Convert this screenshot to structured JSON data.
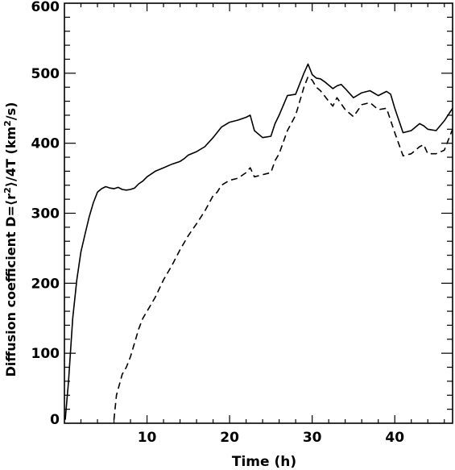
{
  "chart_data": {
    "type": "line",
    "title": "",
    "xlabel": "Time (h)",
    "ylabel_parts": {
      "prefix": "Diffusion coefficient D=",
      "lang": "⟨",
      "r": "r",
      "sup": "2",
      "rang": "⟩",
      "mid": "/4T  (km",
      "sup2": "2",
      "suffix": "/s)"
    },
    "xlim": [
      0,
      47
    ],
    "ylim": [
      0,
      600
    ],
    "x_ticks": [
      10,
      20,
      30,
      40
    ],
    "x_tick_labels": [
      "10",
      "20",
      "30",
      "40"
    ],
    "y_ticks": [
      0,
      100,
      200,
      300,
      400,
      500,
      600
    ],
    "y_tick_labels": [
      "0",
      "100",
      "200",
      "300",
      "400",
      "500",
      "600"
    ],
    "grid": false,
    "legend": "none",
    "series": [
      {
        "style": "solid",
        "color": "#000000",
        "x": [
          0.1,
          0.5,
          1,
          1.5,
          2,
          2.5,
          3,
          3.5,
          4,
          4.5,
          5,
          5.5,
          6,
          6.5,
          7,
          7.5,
          8,
          8.5,
          9,
          9.5,
          10,
          11,
          12,
          13,
          14,
          14.5,
          15,
          16,
          17,
          18,
          19,
          20,
          21,
          22,
          22.5,
          23,
          24,
          25,
          25.5,
          26,
          27,
          28,
          29,
          29.5,
          30,
          30.5,
          31,
          31.5,
          32,
          32.5,
          33,
          33.5,
          34,
          35,
          36,
          37,
          38,
          38.5,
          39,
          39.5,
          40,
          41,
          42,
          43,
          43.5,
          44,
          45,
          46,
          47
        ],
        "values": [
          5,
          60,
          150,
          205,
          245,
          270,
          295,
          315,
          330,
          335,
          338,
          336,
          335,
          337,
          334,
          333,
          334,
          336,
          342,
          346,
          352,
          360,
          365,
          370,
          374,
          378,
          383,
          388,
          395,
          408,
          423,
          430,
          433,
          437,
          440,
          418,
          408,
          410,
          428,
          440,
          468,
          470,
          500,
          513,
          498,
          493,
          492,
          488,
          483,
          478,
          482,
          484,
          478,
          465,
          472,
          475,
          468,
          471,
          474,
          470,
          450,
          415,
          418,
          428,
          425,
          420,
          418,
          432,
          450
        ]
      },
      {
        "style": "dashed",
        "color": "#000000",
        "x": [
          6,
          6.3,
          7,
          7.5,
          8,
          8.5,
          9,
          9.5,
          10,
          11,
          12,
          13,
          14,
          15,
          16,
          17,
          18,
          18.5,
          19,
          20,
          21,
          22,
          22.5,
          23,
          24,
          25,
          25.5,
          26,
          27,
          28,
          29,
          29.5,
          30,
          30.5,
          31,
          32,
          32.5,
          33,
          34,
          35,
          36,
          37,
          38,
          39,
          40,
          41,
          42,
          43,
          43.5,
          44,
          45,
          46,
          47
        ],
        "values": [
          5,
          40,
          70,
          80,
          95,
          115,
          135,
          150,
          160,
          180,
          205,
          225,
          248,
          268,
          285,
          303,
          325,
          330,
          340,
          347,
          350,
          358,
          365,
          352,
          355,
          358,
          375,
          385,
          418,
          440,
          480,
          495,
          490,
          480,
          475,
          460,
          453,
          465,
          448,
          438,
          455,
          458,
          448,
          450,
          415,
          382,
          385,
          395,
          398,
          385,
          385,
          390,
          420
        ]
      }
    ]
  }
}
